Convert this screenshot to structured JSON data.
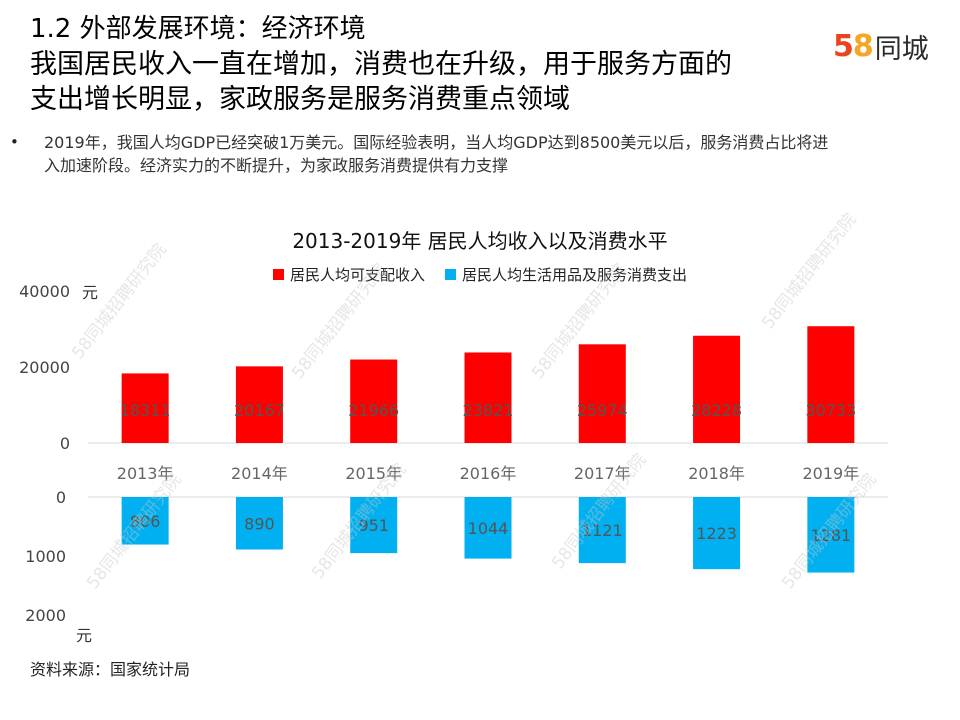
{
  "header": {
    "title_lines": [
      "1.2 外部发展环境：经济环境",
      "我国居民收入一直在增加，消费也在升级，用于服务方面的",
      "支出增长明显，家政服务是服务消费重点领域"
    ]
  },
  "logo": {
    "digit1": "5",
    "digit2": "8",
    "text": "同城"
  },
  "bullet": {
    "marker": "•",
    "text": "2019年，我国人均GDP已经突破1万美元。国际经验表明，当人均GDP达到8500美元以后，服务消费占比将进入加速阶段。经济实力的不断提升，为家政服务消费提供有力支撑"
  },
  "watermark": "58同城招聘研究院",
  "source": "资料来源：国家统计局",
  "chart_data": {
    "type": "bar",
    "title": "2013-2019年 居民人均收入以及消费水平",
    "categories": [
      "2013年",
      "2014年",
      "2015年",
      "2016年",
      "2017年",
      "2018年",
      "2019年"
    ],
    "series": [
      {
        "name": "居民人均可支配收入",
        "color": "#ff0000",
        "values": [
          18311,
          20167,
          21966,
          23821,
          25974,
          28228,
          30733
        ],
        "axis": {
          "ylim": [
            0,
            40000
          ],
          "ticks": [
            "0",
            "20000",
            "40000"
          ],
          "unit": "元"
        }
      },
      {
        "name": "居民人均生活用品及服务消费支出",
        "color": "#00b0f0",
        "values": [
          806,
          890,
          951,
          1044,
          1121,
          1223,
          1281
        ],
        "axis": {
          "ylim": [
            0,
            2000
          ],
          "ticks": [
            "0",
            "1000",
            "2000"
          ],
          "unit": "元",
          "inverted": true
        }
      }
    ],
    "legend": "top"
  }
}
